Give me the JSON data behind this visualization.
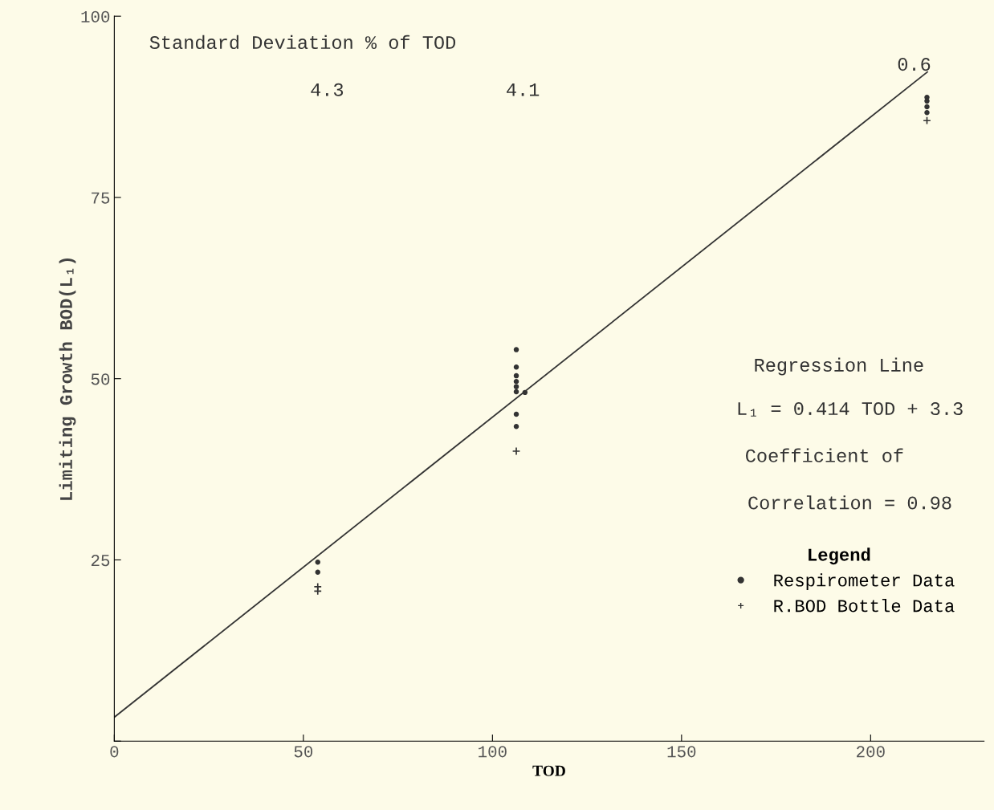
{
  "chart_data": {
    "type": "scatter",
    "xlabel": "TOD",
    "ylabel": "Limiting Growth BOD(L₁)",
    "xlim": [
      0,
      230
    ],
    "ylim": [
      0,
      100
    ],
    "xticks": [
      0,
      50,
      100,
      150,
      200
    ],
    "yticks": [
      {
        "value": 0,
        "label": null
      },
      25,
      50,
      75,
      100
    ],
    "grid": false,
    "legend": "right",
    "legend_title": "Legend",
    "series": [
      {
        "name": "Respirometer Data",
        "marker": "circle",
        "color": "#333333",
        "x": [
          53.8,
          53.8,
          106.3,
          106.3,
          106.3,
          106.3,
          106.3,
          106.3,
          108.6,
          106.3,
          106.3,
          214.9,
          214.9,
          214.9,
          214.9
        ],
        "values": [
          24.7,
          23.3,
          54.0,
          51.6,
          50.4,
          49.6,
          48.9,
          48.2,
          48.1,
          45.1,
          43.4,
          88.8,
          88.3,
          87.5,
          86.7
        ]
      },
      {
        "name": "R.BOD Bottle Data",
        "marker": "cross",
        "color": "#333333",
        "x": [
          53.8,
          53.8,
          106.3,
          214.9
        ],
        "values": [
          21.3,
          20.7,
          40.0,
          85.6
        ]
      },
      {
        "type": "line",
        "marker": "none",
        "line_style": "solid",
        "color": "#333333",
        "x": [
          0,
          215
        ],
        "values": [
          3.3,
          92.3
        ]
      }
    ],
    "annotations": [
      "Standard Deviation % of TOD",
      "4.3",
      "4.1",
      "0.6",
      "Regression Line",
      "L₁ = 0.414 TOD + 3.3",
      "Coefficient of",
      "Correlation = 0.98"
    ]
  }
}
